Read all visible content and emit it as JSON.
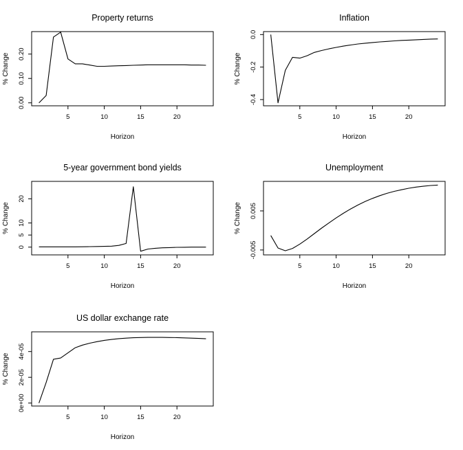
{
  "chart_data": [
    {
      "type": "line",
      "title": "Property returns",
      "xlabel": "Horizon",
      "ylabel": "% Change",
      "xlim": [
        1,
        24
      ],
      "ylim": [
        0.0,
        0.28
      ],
      "xticks": [
        5,
        10,
        15,
        20
      ],
      "yticks": [
        0.0,
        0.1,
        0.2
      ],
      "ytick_labels": [
        "0.00",
        "0.10",
        "0.20"
      ],
      "x": [
        1,
        2,
        3,
        4,
        5,
        6,
        7,
        8,
        9,
        10,
        11,
        12,
        13,
        14,
        15,
        16,
        17,
        18,
        19,
        20,
        21,
        22,
        23,
        24
      ],
      "values": [
        0.0,
        0.03,
        0.27,
        0.29,
        0.18,
        0.16,
        0.16,
        0.155,
        0.15,
        0.15,
        0.151,
        0.152,
        0.153,
        0.154,
        0.155,
        0.156,
        0.156,
        0.156,
        0.156,
        0.156,
        0.156,
        0.155,
        0.155,
        0.154
      ]
    },
    {
      "type": "line",
      "title": "Inflation",
      "xlabel": "Horizon",
      "ylabel": "% Change",
      "xlim": [
        1,
        24
      ],
      "ylim": [
        -0.42,
        0.0
      ],
      "xticks": [
        5,
        10,
        15,
        20
      ],
      "yticks": [
        -0.4,
        -0.2,
        0.0
      ],
      "ytick_labels": [
        "-0.4",
        "-0.2",
        "0.0"
      ],
      "x": [
        1,
        2,
        3,
        4,
        5,
        6,
        7,
        8,
        9,
        10,
        11,
        12,
        13,
        14,
        15,
        16,
        17,
        18,
        19,
        20,
        21,
        22,
        23,
        24
      ],
      "values": [
        0.0,
        -0.42,
        -0.22,
        -0.14,
        -0.145,
        -0.13,
        -0.11,
        -0.098,
        -0.088,
        -0.079,
        -0.071,
        -0.064,
        -0.058,
        -0.053,
        -0.049,
        -0.045,
        -0.042,
        -0.039,
        -0.036,
        -0.034,
        -0.032,
        -0.03,
        -0.028,
        -0.027
      ]
    },
    {
      "type": "line",
      "title": "5-year government bond yields",
      "xlabel": "Horizon",
      "ylabel": "% Change",
      "xlim": [
        1,
        24
      ],
      "ylim": [
        -2,
        26
      ],
      "xticks": [
        5,
        10,
        15,
        20
      ],
      "yticks": [
        0,
        5,
        10,
        20
      ],
      "ytick_labels": [
        "0",
        "5",
        "10",
        "20"
      ],
      "x": [
        1,
        2,
        3,
        4,
        5,
        6,
        7,
        8,
        9,
        10,
        11,
        12,
        13,
        14,
        15,
        16,
        17,
        18,
        19,
        20,
        21,
        22,
        23,
        24
      ],
      "values": [
        0.1,
        0.1,
        0.1,
        0.1,
        0.1,
        0.1,
        0.15,
        0.2,
        0.25,
        0.3,
        0.4,
        0.7,
        1.5,
        25,
        -1.7,
        -0.8,
        -0.5,
        -0.3,
        -0.2,
        -0.1,
        -0.05,
        0,
        0,
        0
      ]
    },
    {
      "type": "line",
      "title": "Unemployment",
      "xlabel": "Horizon",
      "ylabel": "% Change",
      "xlim": [
        1,
        24
      ],
      "ylim": [
        -0.0055,
        0.0118
      ],
      "xticks": [
        5,
        10,
        15,
        20
      ],
      "yticks": [
        -0.005,
        0.005
      ],
      "ytick_labels": [
        "-0.005",
        "0.005"
      ],
      "x": [
        1,
        2,
        3,
        4,
        5,
        6,
        7,
        8,
        9,
        10,
        11,
        12,
        13,
        14,
        15,
        16,
        17,
        18,
        19,
        20,
        21,
        22,
        23,
        24
      ],
      "values": [
        -0.0013,
        -0.0045,
        -0.0052,
        -0.0046,
        -0.0035,
        -0.0022,
        -0.0008,
        0.0006,
        0.0019,
        0.0032,
        0.0044,
        0.0055,
        0.0065,
        0.0074,
        0.0082,
        0.0089,
        0.0095,
        0.01,
        0.0104,
        0.0108,
        0.0111,
        0.0113,
        0.0115,
        0.0116
      ]
    },
    {
      "type": "line",
      "title": "US dollar exchange rate",
      "xlabel": "Horizon",
      "ylabel": "% Change",
      "xlim": [
        1,
        24
      ],
      "ylim": [
        0,
        5.3e-05
      ],
      "xticks": [
        5,
        10,
        15,
        20
      ],
      "yticks": [
        0,
        2e-05,
        4e-05
      ],
      "ytick_labels": [
        "0e+00",
        "2e-05",
        "4e-05"
      ],
      "x": [
        1,
        2,
        3,
        4,
        5,
        6,
        7,
        8,
        9,
        10,
        11,
        12,
        13,
        14,
        15,
        16,
        17,
        18,
        19,
        20,
        21,
        22,
        23,
        24
      ],
      "values": [
        0,
        1.6e-05,
        3.4e-05,
        3.5e-05,
        3.9e-05,
        4.3e-05,
        4.5e-05,
        4.65e-05,
        4.77e-05,
        4.87e-05,
        4.94e-05,
        5e-05,
        5.04e-05,
        5.07e-05,
        5.09e-05,
        5.1e-05,
        5.1e-05,
        5.1e-05,
        5.09e-05,
        5.08e-05,
        5.06e-05,
        5.04e-05,
        5.02e-05,
        4.99e-05
      ]
    }
  ]
}
